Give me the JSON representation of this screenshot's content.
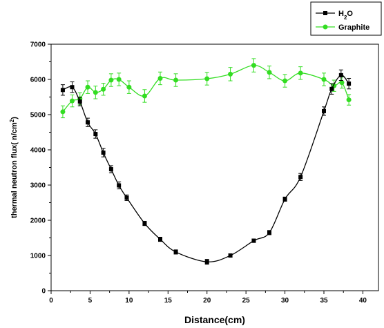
{
  "chart_data": {
    "type": "line",
    "xlabel": "Distance(cm)",
    "ylabel": "thermal neutron flux( n/cm2)",
    "ylabel_parts": {
      "main": "thermal neutron flux(  n/cm",
      "sup": "2",
      "close": ")"
    },
    "xlim": [
      0,
      42
    ],
    "ylim": [
      0,
      7000
    ],
    "x_ticks": [
      0,
      5,
      10,
      15,
      20,
      25,
      30,
      35,
      40
    ],
    "y_ticks": [
      0,
      1000,
      2000,
      3000,
      4000,
      5000,
      6000,
      7000
    ],
    "legend_position": "top-right",
    "series": [
      {
        "name": "H2O",
        "label_parts": {
          "main": "H",
          "sub": "2",
          "tail": "O"
        },
        "color": "#000000",
        "marker": "square",
        "x": [
          1.5,
          2.7,
          3.7,
          4.7,
          5.7,
          6.7,
          7.7,
          8.7,
          9.7,
          12,
          14,
          16,
          20,
          23,
          26,
          28,
          30,
          32,
          35,
          36,
          37.2,
          38.2
        ],
        "y": [
          5700,
          5780,
          5370,
          4780,
          4450,
          3920,
          3450,
          2990,
          2640,
          1910,
          1460,
          1100,
          820,
          1000,
          1420,
          1650,
          2600,
          3230,
          5100,
          5730,
          6120,
          5880
        ],
        "err": [
          150,
          150,
          120,
          120,
          120,
          120,
          100,
          100,
          80,
          60,
          60,
          60,
          70,
          50,
          50,
          60,
          60,
          100,
          120,
          150,
          150,
          150
        ]
      },
      {
        "name": "Graphite",
        "color": "#33dd22",
        "marker": "circle",
        "x": [
          1.5,
          2.7,
          3.7,
          4.7,
          5.7,
          6.7,
          7.7,
          8.7,
          10,
          12,
          14,
          16,
          20,
          23,
          26,
          28,
          30,
          32,
          35,
          36.3,
          37.3,
          38.2
        ],
        "y": [
          5080,
          5390,
          5450,
          5780,
          5630,
          5720,
          5980,
          6000,
          5780,
          5530,
          6030,
          5980,
          6020,
          6150,
          6400,
          6200,
          5960,
          6180,
          6000,
          5820,
          5910,
          5420
        ],
        "err": [
          170,
          170,
          170,
          180,
          180,
          170,
          180,
          180,
          180,
          180,
          180,
          180,
          180,
          190,
          190,
          180,
          180,
          180,
          180,
          160,
          160,
          150
        ]
      }
    ]
  }
}
